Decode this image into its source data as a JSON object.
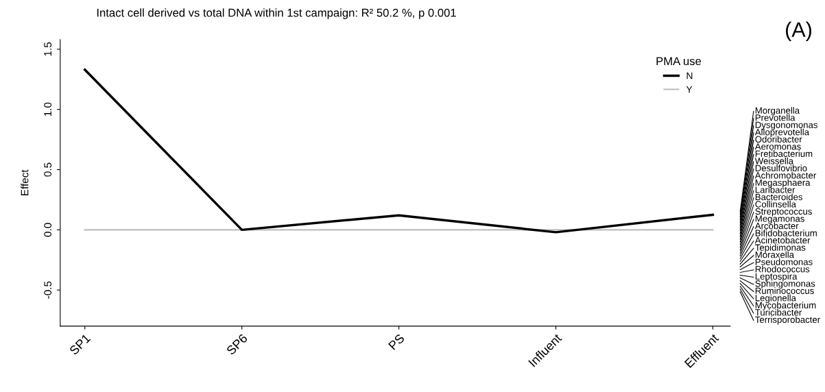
{
  "chart_data": {
    "type": "line",
    "title": "Intact cell derived vs total DNA within 1st campaign: R² 50.2 %, p 0.001",
    "ylabel": "Effect",
    "legend_title": "PMA use",
    "categories": [
      "SP1",
      "SP6",
      "PS",
      "Influent",
      "Effluent"
    ],
    "series": [
      {
        "name": "N",
        "color": "#000000",
        "values": [
          1.33,
          0.0,
          0.12,
          -0.02,
          0.125
        ]
      },
      {
        "name": "Y",
        "color": "#bebebe",
        "values": [
          0,
          0,
          0,
          0,
          0
        ]
      }
    ],
    "ylim": [
      -0.8,
      1.58
    ],
    "yticks": [
      -0.5,
      {
        "value": 0,
        "label": "0.0"
      },
      0.5,
      {
        "value": 1,
        "label": "1.0"
      },
      1.5
    ],
    "grid": false,
    "legend": "top right",
    "marker": "none",
    "line_style": "solid",
    "annotations": [
      "(A)",
      "Morganella",
      "Prevotella",
      "Dysgonomonas",
      "Alloprevotella",
      "Odoribacter",
      "Aeromonas",
      "Fretibacterium",
      "Weissella",
      "Desulfovibrio",
      "Achromobacter",
      "Megasphaera",
      "Laribacter",
      "Bacteroides",
      "Collinsella",
      "Streptococcus",
      "Megamonas",
      "Arcobacter",
      "Bifidobacterium",
      "Acinetobacter",
      "Tepidimonas",
      "Moraxella",
      "Pseudomonas",
      "Rhodococcus",
      "Leptospira",
      "Sphingomonas",
      "Ruminococcus",
      "Legionella",
      "Mycobacterium",
      "Turicibacter",
      "Terrisporobacter"
    ]
  }
}
